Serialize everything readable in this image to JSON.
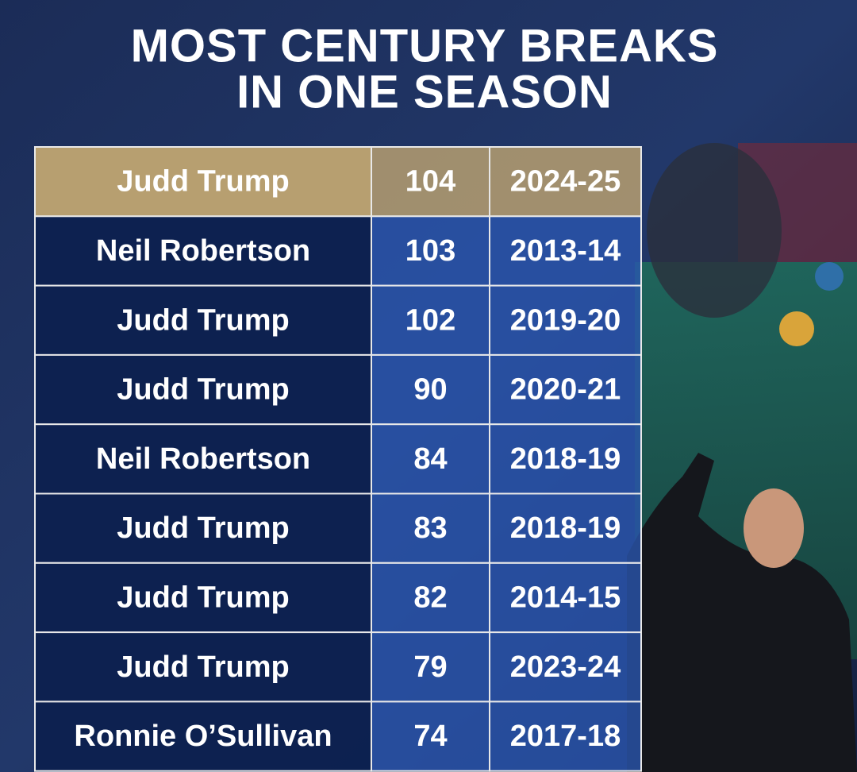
{
  "header": {
    "title_lines": [
      "MOST CENTURY BREAKS",
      "IN ONE SEASON"
    ]
  },
  "table": {
    "rows": [
      [
        "Judd Trump",
        104,
        "2024-25"
      ],
      [
        "Neil Robertson",
        103,
        "2013-14"
      ],
      [
        "Judd Trump",
        102,
        "2019-20"
      ],
      [
        "Judd Trump",
        90,
        "2020-21"
      ],
      [
        "Neil Robertson",
        84,
        "2018-19"
      ],
      [
        "Judd Trump",
        83,
        "2018-19"
      ],
      [
        "Judd Trump",
        82,
        "2014-15"
      ],
      [
        "Judd Trump",
        79,
        "2023-24"
      ],
      [
        "Ronnie O’Sullivan",
        74,
        "2017-18"
      ]
    ]
  }
}
